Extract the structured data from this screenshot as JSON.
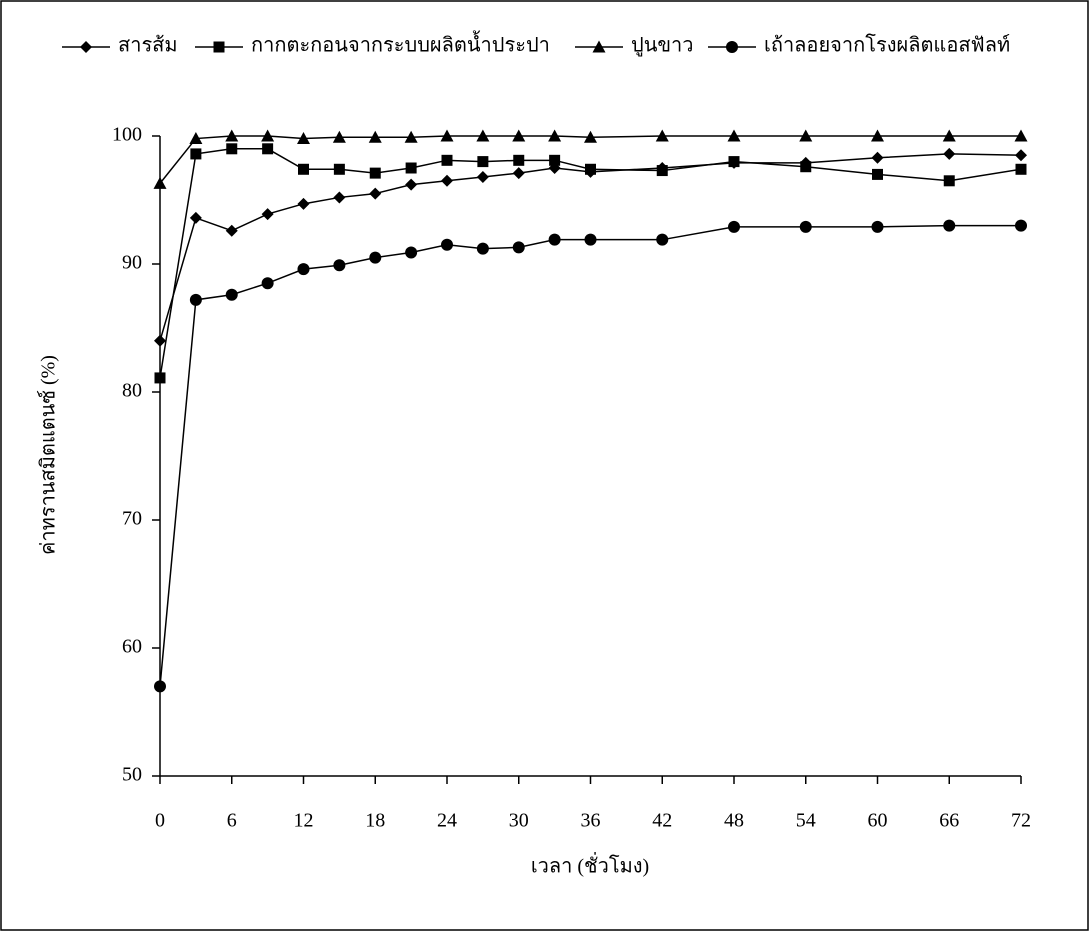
{
  "chart_data": {
    "type": "line",
    "x_label": "เวลา (ชั่วโมง)",
    "y_label": "ค่าทรานสมิตแตนซ์ (%)",
    "x": [
      0,
      3,
      6,
      9,
      12,
      15,
      18,
      21,
      24,
      27,
      30,
      33,
      36,
      42,
      48,
      54,
      60,
      66,
      72
    ],
    "series": [
      {
        "name": "สารส้ม",
        "color": "#000000",
        "marker": "diamond",
        "values": [
          84,
          93.6,
          92.6,
          93.9,
          94.7,
          95.2,
          95.5,
          96.2,
          96.5,
          96.8,
          97.1,
          97.5,
          97.2,
          97.5,
          97.9,
          97.9,
          98.3,
          98.6,
          98.5
        ]
      },
      {
        "name": "กากตะกอนจากระบบผลิตน้ำประปา",
        "color": "#000000",
        "marker": "square",
        "values": [
          81.1,
          98.6,
          99.0,
          99.0,
          97.4,
          97.4,
          97.1,
          97.5,
          98.1,
          98.0,
          98.1,
          98.1,
          97.4,
          97.3,
          98.0,
          97.6,
          97.0,
          96.5,
          97.4
        ]
      },
      {
        "name": "ปูนขาว",
        "color": "#000000",
        "marker": "triangle",
        "values": [
          96.3,
          99.8,
          100,
          100,
          99.8,
          99.9,
          99.9,
          99.9,
          100,
          100,
          100,
          100,
          99.9,
          100,
          100,
          100,
          100,
          100,
          100
        ]
      },
      {
        "name": "เถ้าลอยจากโรงผลิตแอสฟัลท์",
        "color": "#000000",
        "marker": "circle",
        "values": [
          57,
          87.2,
          87.6,
          88.5,
          89.6,
          89.9,
          90.5,
          90.9,
          91.5,
          91.2,
          91.3,
          91.9,
          91.9,
          91.9,
          92.9,
          92.9,
          92.9,
          93.0,
          93.0
        ]
      }
    ],
    "xlim": [
      0,
      72
    ],
    "xticks": [
      0,
      6,
      12,
      18,
      24,
      30,
      36,
      42,
      48,
      54,
      60,
      66,
      72
    ],
    "ylim": [
      50,
      100
    ],
    "yticks": [
      50,
      60,
      70,
      80,
      90,
      100
    ],
    "legend": "top"
  }
}
